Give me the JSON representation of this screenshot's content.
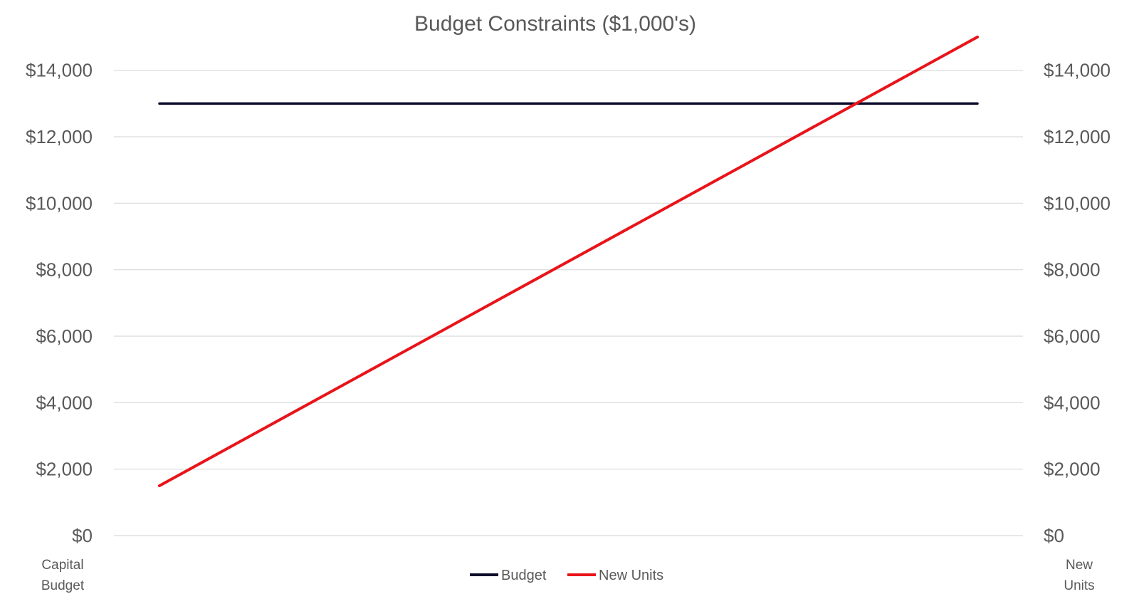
{
  "chart_data": {
    "type": "line",
    "title": "Budget Constraints ($1,000's)",
    "x": [
      0,
      1
    ],
    "ylim": [
      0,
      15000
    ],
    "y_ticks": [
      0,
      2000,
      4000,
      6000,
      8000,
      10000,
      12000,
      14000
    ],
    "y_tick_labels": [
      "$0",
      "$2,000",
      "$4,000",
      "$6,000",
      "$8,000",
      "$10,000",
      "$12,000",
      "$14,000"
    ],
    "y_left_axis_label": [
      "Capital",
      "Budget"
    ],
    "y_right_axis_label": [
      "New",
      "Units"
    ],
    "grid": true,
    "legend": "bottom-center",
    "series": [
      {
        "name": "Budget",
        "color": "#0a0a2a",
        "values": [
          13000,
          13000
        ]
      },
      {
        "name": "New Units",
        "color": "#e8141a",
        "values": [
          1500,
          15000
        ]
      }
    ]
  }
}
